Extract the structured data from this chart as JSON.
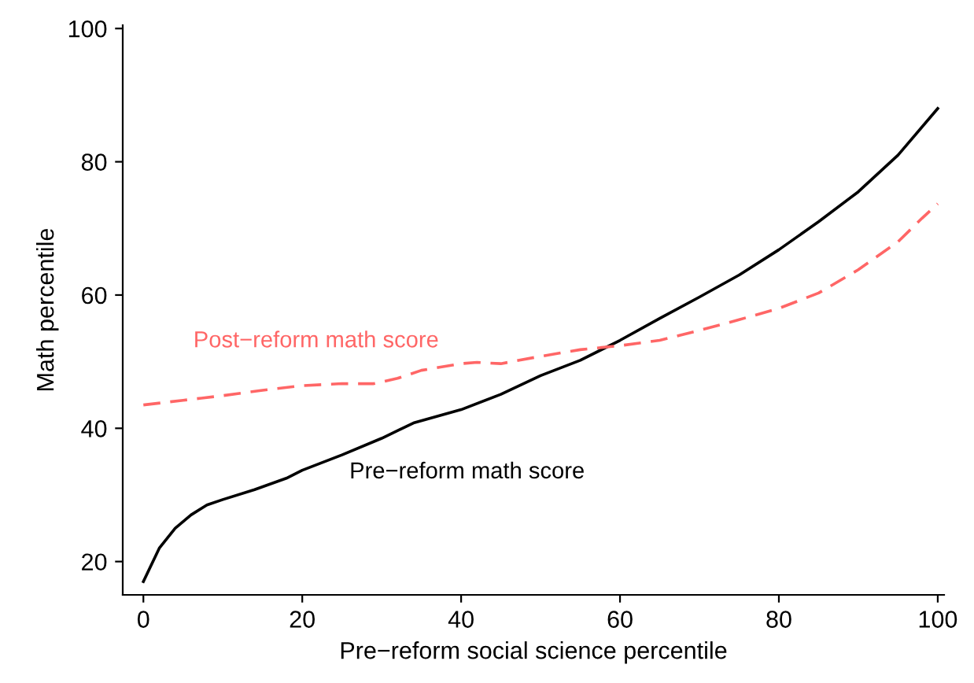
{
  "chart_data": {
    "type": "line",
    "xlabel": "Pre−reform social science percentile",
    "ylabel": "Math percentile",
    "xlim": [
      -2.6,
      100.8
    ],
    "ylim": [
      15,
      100.5
    ],
    "xticks": [
      0,
      20,
      40,
      60,
      80,
      100
    ],
    "yticks": [
      20,
      40,
      60,
      80,
      100
    ],
    "grid": false,
    "legend": false,
    "series": [
      {
        "name": "Pre−reform math score",
        "color": "#000000",
        "line_style": "solid",
        "x": [
          0,
          2,
          4,
          6,
          8,
          10,
          14,
          18,
          20,
          25,
          30,
          34,
          40,
          45,
          50,
          55,
          60,
          65,
          70,
          75,
          80,
          85,
          90,
          95,
          100
        ],
        "values": [
          17,
          22,
          25,
          27,
          28.5,
          29.3,
          30.8,
          32.5,
          33.7,
          36,
          38.5,
          40.8,
          42.8,
          45.1,
          47.9,
          50.2,
          53.2,
          56.5,
          59.7,
          63,
          66.8,
          71,
          75.5,
          81,
          88
        ]
      },
      {
        "name": "Post−reform math score",
        "color": "#ff6666",
        "line_style": "dashed",
        "x": [
          0,
          5,
          10,
          15,
          20,
          25,
          29,
          32,
          35,
          40,
          42,
          45,
          50,
          55,
          60,
          65,
          70,
          75,
          80,
          85,
          90,
          95,
          98,
          100
        ],
        "values": [
          43.5,
          44.2,
          44.9,
          45.7,
          46.4,
          46.7,
          46.7,
          47.5,
          48.7,
          49.7,
          49.9,
          49.7,
          50.8,
          51.8,
          52.4,
          53.2,
          54.7,
          56.3,
          58,
          60.3,
          63.8,
          68,
          71.5,
          73.7
        ]
      }
    ]
  }
}
